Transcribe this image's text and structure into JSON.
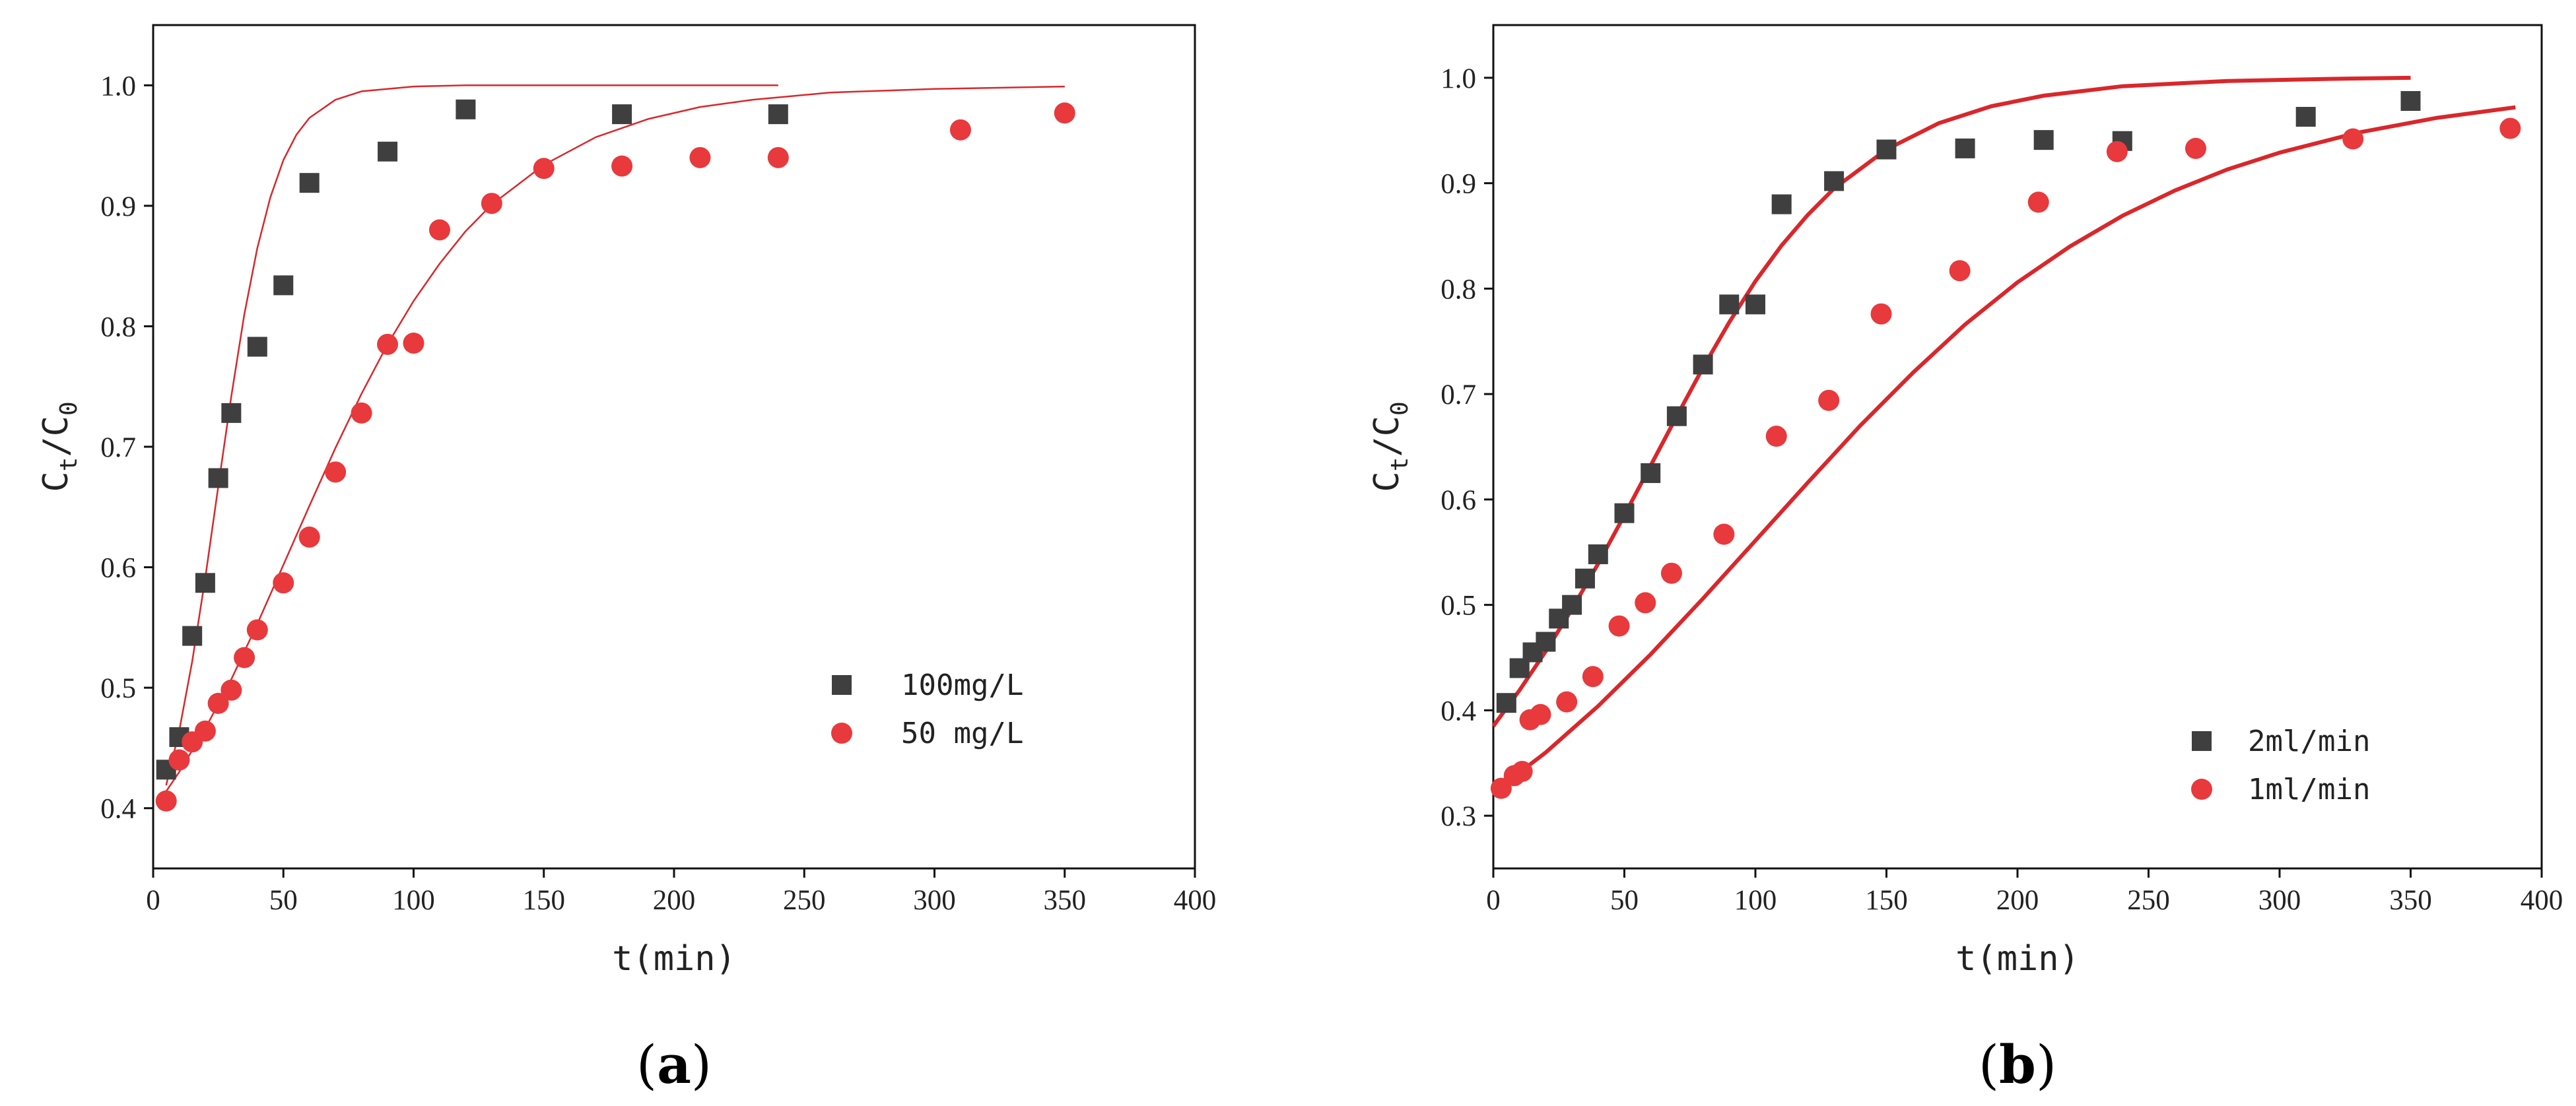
{
  "colors": {
    "series_square": "#3f3f3f",
    "series_circle": "#e8393d",
    "fit_line": "#d9272b",
    "axis": "#111111"
  },
  "panels": [
    {
      "id": "a",
      "label_open": "(",
      "label_letter": "a",
      "label_close": ")"
    },
    {
      "id": "b",
      "label_open": "(",
      "label_letter": "b",
      "label_close": ")"
    }
  ],
  "chart_data": [
    {
      "type": "scatter",
      "panel": "a",
      "xlabel": "t(min)",
      "ylabel": {
        "main": "C",
        "sub1": "t",
        "slash": "/C",
        "sub2": "0"
      },
      "xlim": [
        0,
        400
      ],
      "ylim": [
        0.35,
        1.05
      ],
      "x_ticks": [
        0,
        50,
        100,
        150,
        200,
        250,
        300,
        350,
        400
      ],
      "x_tick_labels": [
        "0",
        "50",
        "100",
        "150",
        "200",
        "250",
        "300",
        "350",
        "400"
      ],
      "y_ticks": [
        0.4,
        0.5,
        0.6,
        0.7,
        0.8,
        0.9,
        1.0
      ],
      "y_tick_labels": [
        "0.4",
        "0.5",
        "0.6",
        "0.7",
        "0.8",
        "0.9",
        "1.0"
      ],
      "legend_position": "bottom-right",
      "series": [
        {
          "name": "100mg/L",
          "marker": "square",
          "points": [
            [
              5,
              0.432
            ],
            [
              10,
              0.459
            ],
            [
              15,
              0.543
            ],
            [
              20,
              0.587
            ],
            [
              25,
              0.674
            ],
            [
              30,
              0.728
            ],
            [
              40,
              0.783
            ],
            [
              50,
              0.834
            ],
            [
              60,
              0.919
            ],
            [
              90,
              0.945
            ],
            [
              120,
              0.98
            ],
            [
              180,
              0.976
            ],
            [
              240,
              0.976
            ]
          ]
        },
        {
          "name": "50 mg/L",
          "marker": "circle",
          "points": [
            [
              5,
              0.406
            ],
            [
              10,
              0.44
            ],
            [
              15,
              0.455
            ],
            [
              20,
              0.464
            ],
            [
              25,
              0.487
            ],
            [
              30,
              0.498
            ],
            [
              35,
              0.525
            ],
            [
              40,
              0.548
            ],
            [
              50,
              0.587
            ],
            [
              60,
              0.625
            ],
            [
              70,
              0.679
            ],
            [
              80,
              0.728
            ],
            [
              90,
              0.785
            ],
            [
              100,
              0.786
            ],
            [
              110,
              0.88
            ],
            [
              130,
              0.902
            ],
            [
              150,
              0.931
            ],
            [
              180,
              0.933
            ],
            [
              210,
              0.94
            ],
            [
              240,
              0.94
            ],
            [
              310,
              0.963
            ],
            [
              350,
              0.977
            ]
          ]
        }
      ],
      "fits": [
        {
          "series": "100mg/L",
          "x_range": [
            5,
            240
          ],
          "points": [
            [
              5,
              0.419
            ],
            [
              10,
              0.464
            ],
            [
              15,
              0.522
            ],
            [
              20,
              0.591
            ],
            [
              25,
              0.667
            ],
            [
              30,
              0.742
            ],
            [
              35,
              0.81
            ],
            [
              40,
              0.865
            ],
            [
              45,
              0.907
            ],
            [
              50,
              0.938
            ],
            [
              55,
              0.959
            ],
            [
              60,
              0.973
            ],
            [
              70,
              0.988
            ],
            [
              80,
              0.995
            ],
            [
              100,
              0.999
            ],
            [
              120,
              1.0
            ],
            [
              180,
              1.0
            ],
            [
              240,
              1.0
            ]
          ]
        },
        {
          "series": "50 mg/L",
          "x_range": [
            5,
            350
          ],
          "points": [
            [
              5,
              0.414
            ],
            [
              10,
              0.43
            ],
            [
              20,
              0.466
            ],
            [
              30,
              0.507
            ],
            [
              40,
              0.553
            ],
            [
              50,
              0.602
            ],
            [
              60,
              0.651
            ],
            [
              70,
              0.699
            ],
            [
              80,
              0.744
            ],
            [
              90,
              0.785
            ],
            [
              100,
              0.821
            ],
            [
              110,
              0.852
            ],
            [
              120,
              0.879
            ],
            [
              130,
              0.901
            ],
            [
              150,
              0.934
            ],
            [
              170,
              0.957
            ],
            [
              190,
              0.972
            ],
            [
              210,
              0.982
            ],
            [
              230,
              0.988
            ],
            [
              260,
              0.994
            ],
            [
              300,
              0.997
            ],
            [
              350,
              0.999
            ]
          ]
        }
      ]
    },
    {
      "type": "scatter",
      "panel": "b",
      "xlabel": "t(min)",
      "ylabel": {
        "main": "C",
        "sub1": "t",
        "slash": "/C",
        "sub2": "0"
      },
      "xlim": [
        0,
        400
      ],
      "ylim": [
        0.25,
        1.05
      ],
      "x_ticks": [
        0,
        50,
        100,
        150,
        200,
        250,
        300,
        350,
        400
      ],
      "x_tick_labels": [
        "0",
        "50",
        "100",
        "150",
        "200",
        "250",
        "300",
        "350",
        "400"
      ],
      "y_ticks": [
        0.3,
        0.4,
        0.5,
        0.6,
        0.7,
        0.8,
        0.9,
        1.0
      ],
      "y_tick_labels": [
        "0.3",
        "0.4",
        "0.5",
        "0.6",
        "0.7",
        "0.8",
        "0.9",
        "1.0"
      ],
      "legend_position": "bottom-right",
      "series": [
        {
          "name": "2ml/min",
          "marker": "square",
          "points": [
            [
              5,
              0.407
            ],
            [
              10,
              0.44
            ],
            [
              15,
              0.455
            ],
            [
              20,
              0.465
            ],
            [
              25,
              0.487
            ],
            [
              30,
              0.5
            ],
            [
              35,
              0.525
            ],
            [
              40,
              0.548
            ],
            [
              50,
              0.587
            ],
            [
              60,
              0.625
            ],
            [
              70,
              0.679
            ],
            [
              80,
              0.728
            ],
            [
              90,
              0.785
            ],
            [
              100,
              0.785
            ],
            [
              110,
              0.88
            ],
            [
              130,
              0.902
            ],
            [
              150,
              0.932
            ],
            [
              180,
              0.933
            ],
            [
              210,
              0.941
            ],
            [
              240,
              0.94
            ],
            [
              310,
              0.963
            ],
            [
              350,
              0.978
            ]
          ]
        },
        {
          "name": "1ml/min",
          "marker": "circle",
          "points": [
            [
              3,
              0.326
            ],
            [
              8,
              0.338
            ],
            [
              11,
              0.342
            ],
            [
              14,
              0.391
            ],
            [
              18,
              0.396
            ],
            [
              28,
              0.408
            ],
            [
              38,
              0.432
            ],
            [
              48,
              0.48
            ],
            [
              58,
              0.502
            ],
            [
              68,
              0.53
            ],
            [
              88,
              0.567
            ],
            [
              108,
              0.66
            ],
            [
              128,
              0.694
            ],
            [
              148,
              0.776
            ],
            [
              178,
              0.817
            ],
            [
              208,
              0.882
            ],
            [
              238,
              0.93
            ],
            [
              268,
              0.933
            ],
            [
              328,
              0.942
            ],
            [
              388,
              0.952
            ]
          ]
        }
      ],
      "fits": [
        {
          "series": "2ml/min",
          "x_range": [
            0,
            350
          ],
          "points": [
            [
              0,
              0.385
            ],
            [
              10,
              0.419
            ],
            [
              20,
              0.456
            ],
            [
              30,
              0.496
            ],
            [
              40,
              0.539
            ],
            [
              50,
              0.585
            ],
            [
              60,
              0.632
            ],
            [
              70,
              0.679
            ],
            [
              80,
              0.725
            ],
            [
              90,
              0.768
            ],
            [
              100,
              0.807
            ],
            [
              110,
              0.841
            ],
            [
              120,
              0.87
            ],
            [
              130,
              0.895
            ],
            [
              150,
              0.932
            ],
            [
              170,
              0.957
            ],
            [
              190,
              0.973
            ],
            [
              210,
              0.983
            ],
            [
              240,
              0.992
            ],
            [
              280,
              0.997
            ],
            [
              320,
              0.999
            ],
            [
              350,
              1.0
            ]
          ]
        },
        {
          "series": "1ml/min",
          "x_range": [
            0,
            390
          ],
          "points": [
            [
              0,
              0.322
            ],
            [
              20,
              0.36
            ],
            [
              40,
              0.404
            ],
            [
              60,
              0.453
            ],
            [
              80,
              0.506
            ],
            [
              100,
              0.561
            ],
            [
              120,
              0.616
            ],
            [
              140,
              0.67
            ],
            [
              160,
              0.72
            ],
            [
              180,
              0.766
            ],
            [
              200,
              0.806
            ],
            [
              220,
              0.84
            ],
            [
              240,
              0.869
            ],
            [
              260,
              0.893
            ],
            [
              280,
              0.913
            ],
            [
              300,
              0.929
            ],
            [
              330,
              0.948
            ],
            [
              360,
              0.962
            ],
            [
              390,
              0.972
            ]
          ]
        }
      ]
    }
  ]
}
